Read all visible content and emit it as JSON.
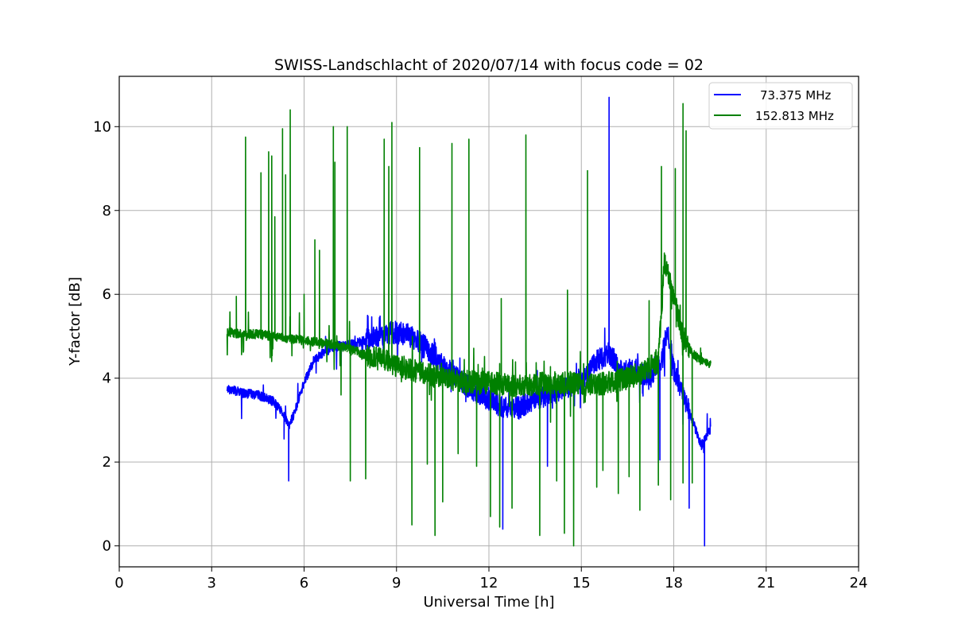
{
  "chart_data": {
    "type": "line",
    "title": "SWISS-Landschlacht of 2020/07/14 with focus code = 02",
    "xlabel": "Universal Time [h]",
    "ylabel": "Y-factor [dB]",
    "xlim": [
      0,
      24
    ],
    "ylim": [
      -0.5,
      11.2
    ],
    "xticks": [
      0,
      3,
      6,
      9,
      12,
      15,
      18,
      21,
      24
    ],
    "yticks": [
      0,
      2,
      4,
      6,
      8,
      10
    ],
    "grid": true,
    "legend_position": "top-right",
    "series": [
      {
        "name": "73.375 MHz",
        "color": "#0000ff",
        "x": [
          3.5,
          4.0,
          4.5,
          5.0,
          5.3,
          5.5,
          5.7,
          6.0,
          6.3,
          6.6,
          7.0,
          7.5,
          8.0,
          8.5,
          9.0,
          9.5,
          10.0,
          10.5,
          11.0,
          11.5,
          12.0,
          12.5,
          13.0,
          13.5,
          14.0,
          14.5,
          15.0,
          15.5,
          15.9,
          16.3,
          16.8,
          17.2,
          17.6,
          17.8,
          18.0,
          18.3,
          18.6,
          18.9,
          19.2
        ],
        "y": [
          3.75,
          3.65,
          3.6,
          3.45,
          3.2,
          2.85,
          3.2,
          3.9,
          4.4,
          4.6,
          4.75,
          4.8,
          4.9,
          5.05,
          5.1,
          5.0,
          4.7,
          4.3,
          4.0,
          3.7,
          3.5,
          3.3,
          3.3,
          3.5,
          3.6,
          3.8,
          3.9,
          4.4,
          4.6,
          4.2,
          4.2,
          4.0,
          4.4,
          5.2,
          4.2,
          3.6,
          3.0,
          2.4,
          2.8
        ],
        "spikes": [
          [
            5.5,
            1.55
          ],
          [
            5.35,
            2.55
          ],
          [
            12.45,
            0.4
          ],
          [
            13.9,
            1.9
          ],
          [
            15.9,
            10.7
          ],
          [
            17.55,
            2.05
          ],
          [
            18.5,
            0.9
          ],
          [
            19.0,
            0.0
          ]
        ]
      },
      {
        "name": "152.813 MHz",
        "color": "#008000",
        "x": [
          3.5,
          4.0,
          4.5,
          5.0,
          5.5,
          6.0,
          6.5,
          7.0,
          7.5,
          8.0,
          8.5,
          9.0,
          9.5,
          10.0,
          10.5,
          11.0,
          11.5,
          12.0,
          12.5,
          13.0,
          13.5,
          14.0,
          14.5,
          15.0,
          15.5,
          16.0,
          16.5,
          17.0,
          17.5,
          17.7,
          17.9,
          18.1,
          18.3,
          18.6,
          18.9,
          19.2
        ],
        "y": [
          5.1,
          5.05,
          5.05,
          5.0,
          4.95,
          4.9,
          4.85,
          4.8,
          4.7,
          4.55,
          4.45,
          4.3,
          4.2,
          4.1,
          4.0,
          3.95,
          3.9,
          3.9,
          3.85,
          3.8,
          3.85,
          3.9,
          3.9,
          3.85,
          3.85,
          3.9,
          4.0,
          4.15,
          4.4,
          6.8,
          6.2,
          5.6,
          5.0,
          4.6,
          4.4,
          4.3
        ],
        "spikes": [
          [
            3.8,
            5.95
          ],
          [
            4.1,
            9.75
          ],
          [
            4.6,
            8.9
          ],
          [
            4.85,
            9.4
          ],
          [
            4.95,
            9.3
          ],
          [
            5.05,
            7.85
          ],
          [
            5.3,
            9.95
          ],
          [
            5.4,
            8.85
          ],
          [
            5.55,
            10.4
          ],
          [
            6.0,
            6.0
          ],
          [
            6.35,
            7.3
          ],
          [
            6.5,
            7.05
          ],
          [
            6.95,
            10.0
          ],
          [
            7.0,
            9.15
          ],
          [
            7.2,
            3.6
          ],
          [
            7.4,
            10.0
          ],
          [
            7.5,
            1.55
          ],
          [
            8.0,
            1.6
          ],
          [
            8.6,
            9.7
          ],
          [
            8.75,
            9.05
          ],
          [
            8.85,
            10.1
          ],
          [
            9.5,
            0.5
          ],
          [
            9.75,
            9.5
          ],
          [
            10.0,
            1.95
          ],
          [
            10.25,
            0.25
          ],
          [
            10.5,
            1.05
          ],
          [
            10.8,
            9.6
          ],
          [
            11.0,
            2.2
          ],
          [
            11.35,
            9.7
          ],
          [
            11.6,
            1.9
          ],
          [
            12.05,
            0.7
          ],
          [
            12.35,
            0.45
          ],
          [
            12.4,
            5.9
          ],
          [
            12.75,
            0.9
          ],
          [
            13.2,
            9.8
          ],
          [
            13.65,
            0.25
          ],
          [
            14.0,
            2.95
          ],
          [
            14.2,
            1.55
          ],
          [
            14.45,
            0.3
          ],
          [
            14.55,
            6.1
          ],
          [
            14.75,
            0.0
          ],
          [
            15.2,
            8.95
          ],
          [
            15.5,
            1.4
          ],
          [
            15.7,
            1.8
          ],
          [
            16.2,
            1.25
          ],
          [
            16.55,
            1.65
          ],
          [
            16.9,
            0.85
          ],
          [
            17.2,
            5.85
          ],
          [
            17.5,
            1.45
          ],
          [
            17.6,
            9.05
          ],
          [
            17.9,
            1.1
          ],
          [
            18.05,
            9.0
          ],
          [
            18.3,
            1.5
          ],
          [
            18.3,
            10.55
          ],
          [
            18.4,
            9.9
          ],
          [
            18.6,
            1.5
          ]
        ]
      }
    ]
  }
}
